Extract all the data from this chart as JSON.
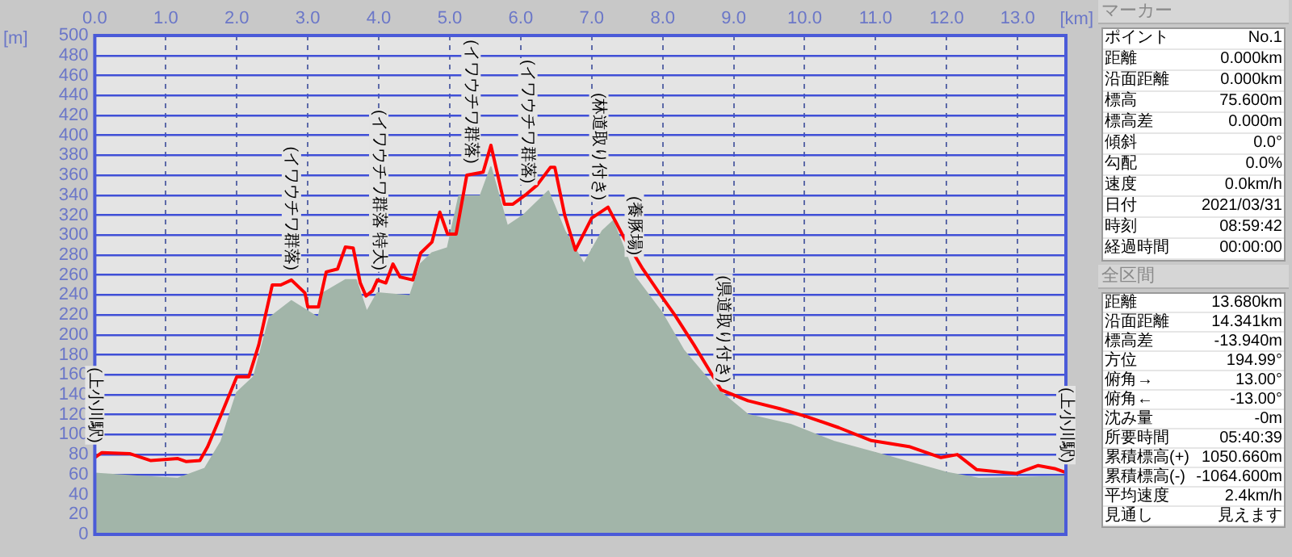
{
  "chart_data": [
    {
      "type": "area",
      "xlabel": "[km]",
      "ylabel": "[m]",
      "xlim": [
        0,
        13.68
      ],
      "ylim": [
        0,
        500
      ],
      "xticks": [
        {
          "value": 0,
          "label": "0.0"
        },
        {
          "value": 1,
          "label": "1.0"
        },
        {
          "value": 2,
          "label": "2.0"
        },
        {
          "value": 3,
          "label": "3.0"
        },
        {
          "value": 4,
          "label": "4.0"
        },
        {
          "value": 5,
          "label": "5.0"
        },
        {
          "value": 6,
          "label": "6.0"
        },
        {
          "value": 7,
          "label": "7.0"
        },
        {
          "value": 8,
          "label": "8.0"
        },
        {
          "value": 9,
          "label": "9.0"
        },
        {
          "value": 10,
          "label": "10.0"
        },
        {
          "value": 11,
          "label": "11.0"
        },
        {
          "value": 12,
          "label": "12.0"
        },
        {
          "value": 13,
          "label": "13.0"
        }
      ],
      "yticks": [
        0,
        20,
        40,
        60,
        80,
        100,
        120,
        140,
        160,
        180,
        200,
        220,
        240,
        260,
        280,
        300,
        320,
        340,
        360,
        380,
        400,
        420,
        440,
        460,
        480,
        500
      ],
      "grid": true,
      "legend": false,
      "series": [
        {
          "type": "area",
          "color": "#a2b5a9",
          "x": [
            0,
            0.64,
            1.17,
            1.55,
            1.78,
            2.0,
            2.24,
            2.46,
            2.77,
            3.15,
            3.22,
            3.53,
            3.68,
            3.83,
            3.98,
            4.44,
            4.59,
            4.75,
            4.97,
            5.13,
            5.43,
            5.58,
            5.81,
            6.04,
            6.39,
            6.62,
            6.89,
            7.15,
            7.3,
            7.61,
            7.98,
            8.29,
            8.74,
            9.2,
            9.8,
            10.41,
            11.09,
            12.0,
            12.45,
            13.68
          ],
          "values": [
            61,
            58,
            56,
            66,
            93,
            142,
            158,
            217,
            234,
            217,
            242,
            255,
            255,
            223,
            242,
            239,
            271,
            282,
            287,
            339,
            339,
            368,
            309,
            320,
            344,
            304,
            271,
            304,
            314,
            258,
            223,
            185,
            147,
            120,
            110,
            93,
            80,
            62,
            56,
            58
          ]
        },
        {
          "type": "line",
          "color": "#ff0000",
          "x": [
            0,
            0.1,
            0.49,
            0.79,
            1.17,
            1.29,
            1.48,
            1.59,
            1.78,
            2.0,
            2.17,
            2.31,
            2.5,
            2.62,
            2.77,
            2.96,
            3.0,
            3.15,
            3.26,
            3.42,
            3.53,
            3.64,
            3.74,
            3.82,
            3.91,
            3.98,
            4.1,
            4.2,
            4.3,
            4.48,
            4.59,
            4.75,
            4.86,
            4.97,
            5.09,
            5.24,
            5.47,
            5.58,
            5.77,
            5.89,
            6.08,
            6.23,
            6.42,
            6.48,
            6.62,
            6.77,
            7.0,
            7.23,
            7.45,
            7.72,
            7.98,
            8.17,
            8.44,
            8.67,
            8.82,
            9.2,
            9.65,
            10.03,
            10.48,
            10.94,
            11.47,
            11.92,
            12.15,
            12.42,
            12.83,
            12.98,
            13.29,
            13.52,
            13.68
          ],
          "values": [
            77,
            82,
            81,
            74,
            76,
            73,
            74,
            88,
            120,
            158,
            158,
            190,
            250,
            250,
            255,
            242,
            228,
            228,
            263,
            266,
            288,
            287,
            252,
            239,
            244,
            255,
            252,
            271,
            258,
            255,
            282,
            293,
            323,
            301,
            301,
            360,
            363,
            390,
            331,
            331,
            341,
            350,
            368,
            368,
            320,
            285,
            317,
            328,
            298,
            266,
            239,
            220,
            190,
            163,
            145,
            134,
            126,
            118,
            107,
            94,
            88,
            77,
            80,
            65,
            62,
            61,
            69,
            66,
            62
          ]
        }
      ],
      "annotations": [
        {
          "text": "(上小川駅)",
          "x": 0,
          "y": 82
        },
        {
          "text": "(イワウチワ群落)",
          "x": 2.77,
          "y": 255
        },
        {
          "text": "(イワウチワ群落 特大)",
          "x": 4.0,
          "y": 255
        },
        {
          "text": "(イワウチワ群落)",
          "x": 5.3,
          "y": 362
        },
        {
          "text": "(イワウチワ群落)",
          "x": 6.1,
          "y": 342
        },
        {
          "text": "(林道取り付き)",
          "x": 7.1,
          "y": 325
        },
        {
          "text": "(養豚場)",
          "x": 7.6,
          "y": 270
        },
        {
          "text": "(県道取り付き)",
          "x": 8.85,
          "y": 142
        },
        {
          "text": "(上小川駅)",
          "x": 13.68,
          "y": 62
        }
      ]
    },
    {
      "type": "other",
      "title": "マーカー",
      "categories": [
        "ポイント",
        "距離",
        "沿面距離",
        "標高",
        "標高差",
        "傾斜",
        "勾配",
        "速度",
        "日付",
        "時刻",
        "経過時間"
      ],
      "annotations": [
        "No.1",
        "0.000km",
        "0.000km",
        "75.600m",
        "0.000m",
        "0.0°",
        "0.0%",
        "0.0km/h",
        "2021/03/31",
        "08:59:42",
        "00:00:00"
      ]
    },
    {
      "type": "other",
      "title": "全区間",
      "categories": [
        "距離",
        "沿面距離",
        "標高差",
        "方位",
        "俯角→",
        "俯角←",
        "沈み量",
        "所要時間",
        "累積標高(+)",
        "累積標高(-)",
        "平均速度",
        "見通し"
      ],
      "annotations": [
        "13.680km",
        "14.341km",
        "-13.940m",
        "194.99°",
        "13.00°",
        "-13.00°",
        "-0m",
        "05:40:39",
        "1050.660m",
        "-1064.600m",
        "2.4km/h",
        "見えます"
      ]
    }
  ]
}
